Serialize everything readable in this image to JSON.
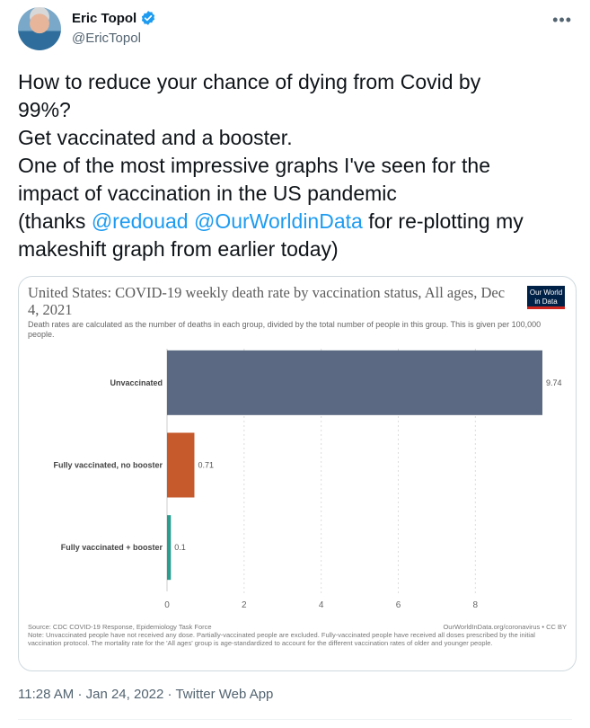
{
  "author": {
    "name": "Eric Topol",
    "handle": "@EricTopol"
  },
  "tweet": {
    "lines": [
      [
        {
          "t": "How to reduce your chance of dying from Covid by"
        }
      ],
      [
        {
          "t": "99%?"
        }
      ],
      [
        {
          "t": "Get vaccinated and a booster."
        }
      ],
      [
        {
          "t": "One of the most impressive graphs I've seen for the"
        }
      ],
      [
        {
          "t": "impact of vaccination in the US pandemic"
        }
      ],
      [
        {
          "t": "(thanks "
        },
        {
          "t": "@redouad",
          "mention": true
        },
        {
          "t": " "
        },
        {
          "t": "@OurWorldinData",
          "mention": true
        },
        {
          "t": " for re-plotting my"
        }
      ],
      [
        {
          "t": "makeshift graph from earlier today)"
        }
      ]
    ]
  },
  "card": {
    "logo_line1": "Our World",
    "logo_line2": "in Data",
    "source_left": "Source: CDC COVID-19 Response, Epidemiology Task Force",
    "source_right": "OurWorldInData.org/coronavirus • CC BY",
    "note": "Note: Unvaccinated people have not received any dose. Partially-vaccinated people are excluded. Fully-vaccinated people have received all doses prescribed by the initial vaccination protocol. The mortality rate for the 'All ages' group is age-standardized to account for the different vaccination rates of older and younger people."
  },
  "chart_data": {
    "type": "bar",
    "orientation": "horizontal",
    "title": "United States: COVID-19 weekly death rate by vaccination status, All ages, Dec 4, 2021",
    "subtitle": "Death rates are calculated as the number of deaths in each group, divided by the total number of people in this group. This is given per 100,000 people.",
    "categories": [
      "Unvaccinated",
      "Fully vaccinated, no booster",
      "Fully vaccinated + booster"
    ],
    "values": [
      9.74,
      0.71,
      0.1
    ],
    "value_labels": [
      "9.74",
      "0.71",
      "0.1"
    ],
    "colors": [
      "#5b6a82",
      "#c75a2c",
      "#2a9d8f"
    ],
    "xlim": [
      0,
      9.74
    ],
    "xticks": [
      0,
      2,
      4,
      6,
      8
    ],
    "grid": true
  },
  "footer": {
    "time": "11:28 AM",
    "date": "Jan 24, 2022",
    "app": "Twitter Web App",
    "sep": "·"
  }
}
